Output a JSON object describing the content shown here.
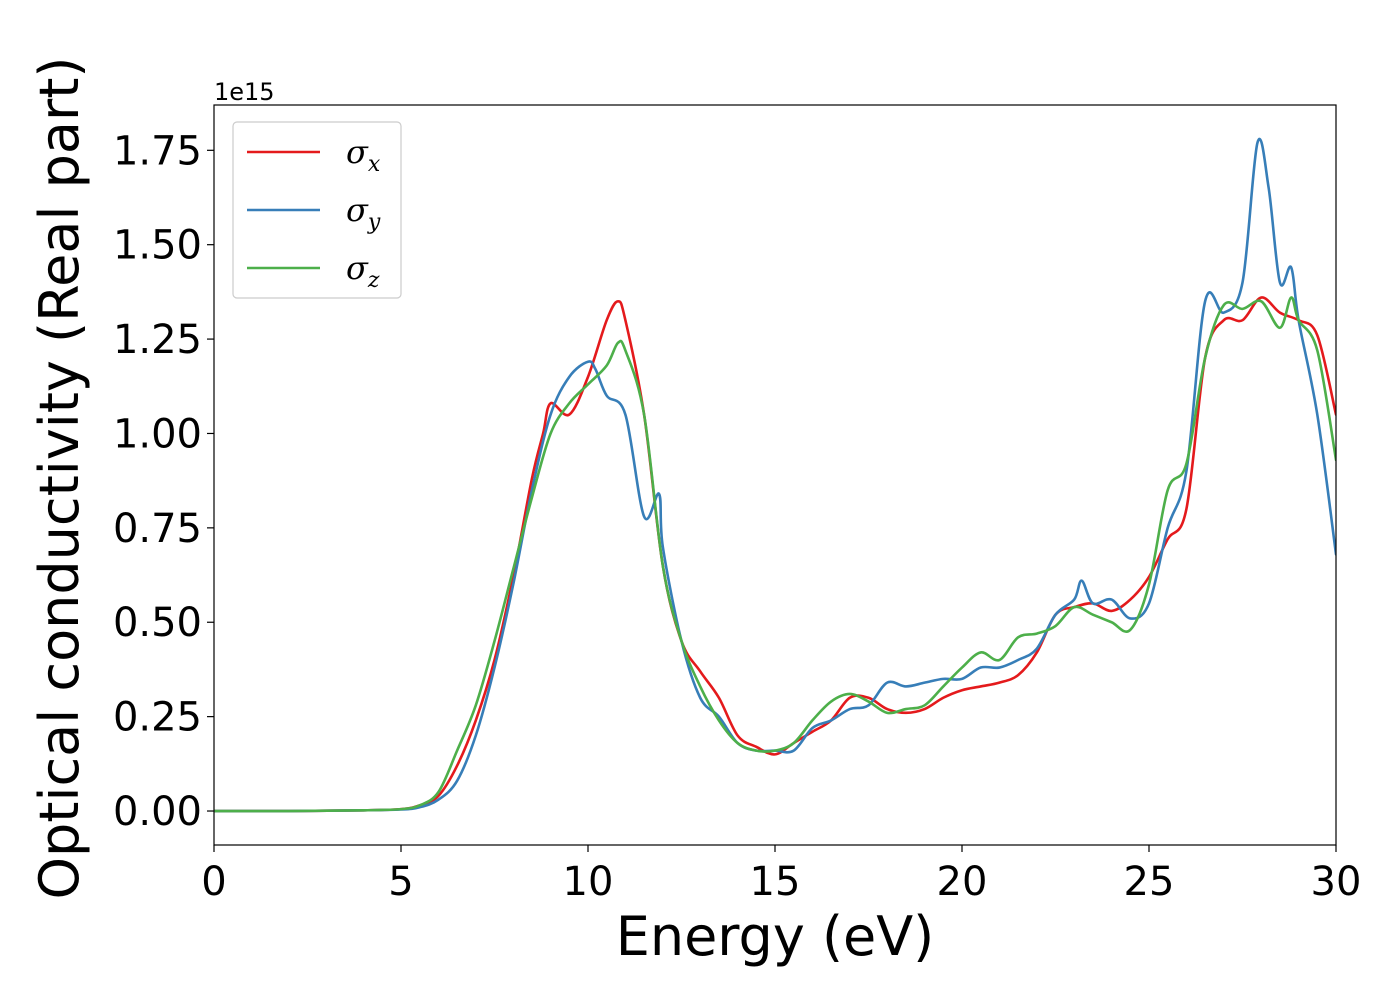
{
  "chart_data": {
    "type": "line",
    "title": "",
    "xlabel": "Energy (eV)",
    "ylabel": "Optical conductivity (Real part)",
    "y_offset_label": "1e15",
    "xlim": [
      0,
      30
    ],
    "ylim": [
      -0.09,
      1.87
    ],
    "xticks": [
      0,
      5,
      10,
      15,
      20,
      25,
      30
    ],
    "xtick_labels": [
      "0",
      "5",
      "10",
      "15",
      "20",
      "25",
      "30"
    ],
    "yticks": [
      0,
      0.25,
      0.5,
      0.75,
      1.0,
      1.25,
      1.5,
      1.75
    ],
    "ytick_labels": [
      "0.00",
      "0.25",
      "0.50",
      "0.75",
      "1.00",
      "1.25",
      "1.50",
      "1.75"
    ],
    "grid": false,
    "legend_position": "top-left",
    "series": [
      {
        "name": "σx",
        "legend_symbol": "σ",
        "legend_subscript": "x",
        "color": "#e41a1c",
        "x": [
          0,
          2,
          4,
          5,
          5.5,
          6,
          6.5,
          7,
          7.5,
          8,
          8.5,
          8.8,
          9,
          9.5,
          10,
          10.5,
          10.8,
          11,
          11.5,
          12,
          12.5,
          13,
          13.5,
          14,
          14.5,
          15,
          15.5,
          16,
          16.5,
          17,
          17.5,
          18,
          18.5,
          19,
          19.5,
          20,
          20.5,
          21,
          21.5,
          22,
          22.5,
          23,
          23.5,
          24,
          24.5,
          25,
          25.5,
          26,
          26.5,
          27,
          27.5,
          28,
          28.5,
          29,
          29.5,
          30
        ],
        "values": [
          0.0,
          0.0,
          0.002,
          0.005,
          0.015,
          0.04,
          0.12,
          0.24,
          0.4,
          0.62,
          0.88,
          1.0,
          1.08,
          1.05,
          1.15,
          1.3,
          1.35,
          1.3,
          1.05,
          0.65,
          0.45,
          0.37,
          0.3,
          0.2,
          0.17,
          0.15,
          0.18,
          0.21,
          0.24,
          0.3,
          0.3,
          0.27,
          0.26,
          0.27,
          0.3,
          0.32,
          0.33,
          0.34,
          0.36,
          0.42,
          0.52,
          0.54,
          0.55,
          0.53,
          0.56,
          0.62,
          0.72,
          0.8,
          1.2,
          1.3,
          1.3,
          1.36,
          1.32,
          1.3,
          1.26,
          1.05
        ]
      },
      {
        "name": "σy",
        "legend_symbol": "σ",
        "legend_subscript": "y",
        "color": "#377eb8",
        "x": [
          0,
          2,
          4,
          5,
          5.5,
          6,
          6.5,
          7,
          7.5,
          8,
          8.5,
          9,
          9.5,
          10,
          10.2,
          10.5,
          11,
          11.5,
          11.9,
          12,
          12.5,
          13,
          13.5,
          14,
          14.5,
          15,
          15.5,
          16,
          16.5,
          17,
          17.5,
          18,
          18.5,
          19,
          19.5,
          20,
          20.5,
          21,
          21.5,
          22,
          22.5,
          23,
          23.2,
          23.5,
          24,
          24.5,
          25,
          25.5,
          26,
          26.5,
          27,
          27.5,
          27.9,
          28.2,
          28.5,
          28.8,
          29,
          29.5,
          30
        ],
        "values": [
          0.0,
          0.0,
          0.002,
          0.004,
          0.01,
          0.03,
          0.08,
          0.2,
          0.38,
          0.6,
          0.85,
          1.05,
          1.15,
          1.19,
          1.17,
          1.1,
          1.05,
          0.78,
          0.84,
          0.7,
          0.45,
          0.3,
          0.25,
          0.18,
          0.16,
          0.16,
          0.16,
          0.22,
          0.24,
          0.27,
          0.28,
          0.34,
          0.33,
          0.34,
          0.35,
          0.35,
          0.38,
          0.38,
          0.4,
          0.43,
          0.52,
          0.56,
          0.61,
          0.55,
          0.56,
          0.51,
          0.55,
          0.75,
          0.9,
          1.35,
          1.32,
          1.4,
          1.77,
          1.65,
          1.4,
          1.44,
          1.3,
          1.05,
          0.68
        ]
      },
      {
        "name": "σz",
        "legend_symbol": "σ",
        "legend_subscript": "z",
        "color": "#4daf4a",
        "x": [
          0,
          2,
          4,
          5,
          5.5,
          6,
          6.5,
          7,
          7.5,
          8,
          8.5,
          9,
          9.5,
          10,
          10.5,
          10.8,
          11,
          11.5,
          12,
          12.5,
          13,
          13.5,
          14,
          14.5,
          15,
          15.5,
          16,
          16.5,
          17,
          17.5,
          18,
          18.5,
          19,
          19.5,
          20,
          20.5,
          21,
          21.5,
          22,
          22.5,
          23,
          23.5,
          24,
          24.5,
          25,
          25.5,
          26,
          26.5,
          27,
          27.5,
          28,
          28.5,
          28.8,
          29,
          29.5,
          30
        ],
        "values": [
          0.0,
          0.0,
          0.002,
          0.005,
          0.015,
          0.05,
          0.16,
          0.28,
          0.45,
          0.64,
          0.83,
          1.0,
          1.08,
          1.13,
          1.18,
          1.24,
          1.22,
          1.05,
          0.65,
          0.45,
          0.33,
          0.24,
          0.18,
          0.16,
          0.16,
          0.18,
          0.24,
          0.29,
          0.31,
          0.29,
          0.26,
          0.27,
          0.28,
          0.33,
          0.38,
          0.42,
          0.4,
          0.46,
          0.47,
          0.49,
          0.54,
          0.52,
          0.5,
          0.48,
          0.6,
          0.85,
          0.92,
          1.2,
          1.34,
          1.33,
          1.35,
          1.28,
          1.36,
          1.3,
          1.22,
          0.93
        ]
      }
    ]
  }
}
